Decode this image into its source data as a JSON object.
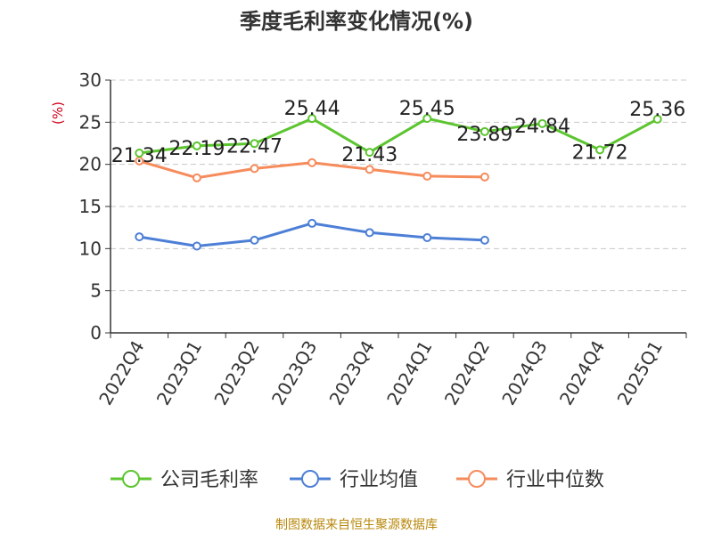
{
  "chart_data": {
    "type": "line",
    "title": "季度毛利率变化情况(%)",
    "ylabel": "(%)",
    "categories": [
      "2022Q4",
      "2023Q1",
      "2023Q2",
      "2023Q3",
      "2023Q4",
      "2024Q1",
      "2024Q2",
      "2024Q3",
      "2024Q4",
      "2025Q1"
    ],
    "y_ticks": [
      "0",
      "5",
      "10",
      "15",
      "20",
      "25",
      "30"
    ],
    "ylim": [
      0,
      30
    ],
    "grid": "horizontal dashed",
    "legend_placement": "bottom-center",
    "series": [
      {
        "name": "公司毛利率",
        "color": "#5cc52f",
        "values": [
          21.34,
          22.19,
          22.47,
          25.44,
          21.43,
          25.45,
          23.89,
          24.84,
          21.72,
          25.36
        ],
        "labels": [
          "21.34",
          "22.19",
          "22.47",
          "25.44",
          "21.43",
          "25.45",
          "23.89",
          "24.84",
          "21.72",
          "25.36"
        ]
      },
      {
        "name": "行业均值",
        "color": "#4d7fd6",
        "values": [
          11.4,
          10.3,
          11.0,
          13.0,
          11.9,
          11.3,
          11.0,
          null,
          null,
          null
        ]
      },
      {
        "name": "行业中位数",
        "color": "#f68b5b",
        "values": [
          20.4,
          18.4,
          19.5,
          20.2,
          19.4,
          18.6,
          18.5,
          null,
          null,
          null
        ]
      }
    ]
  },
  "source": "制图数据来自恒生聚源数据库"
}
